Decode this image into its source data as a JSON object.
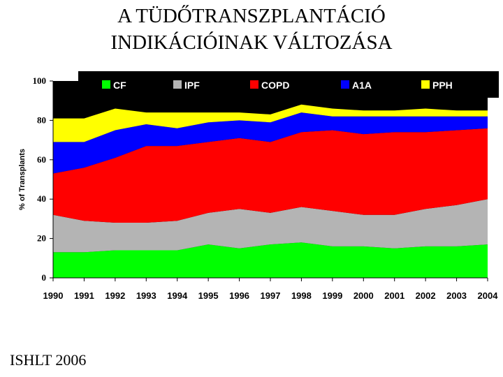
{
  "slide": {
    "title_line1": "A TÜDŐTRANSZPLANTÁCIÓ",
    "title_line2": "INDIKÁCIÓINAK VÁLTOZÁSA",
    "footer": "ISHLT 2006"
  },
  "chart_data": {
    "type": "area",
    "stacked": true,
    "x": [
      1990,
      1991,
      1992,
      1993,
      1994,
      1995,
      1996,
      1997,
      1998,
      1999,
      2000,
      2001,
      2002,
      2003,
      2004
    ],
    "ylabel": "% of Transplants",
    "ylim": [
      0,
      100
    ],
    "yticks": [
      0,
      20,
      40,
      60,
      80,
      100
    ],
    "legend_position": "top",
    "background_color": "#000000",
    "series": [
      {
        "name": "CF",
        "color": "#00ff00",
        "values": [
          13,
          13,
          14,
          14,
          14,
          17,
          15,
          17,
          18,
          16,
          16,
          15,
          16,
          16,
          17
        ]
      },
      {
        "name": "IPF",
        "color": "#b4b4b4",
        "values": [
          19,
          16,
          14,
          14,
          15,
          16,
          20,
          16,
          18,
          18,
          16,
          17,
          19,
          21,
          23
        ]
      },
      {
        "name": "COPD",
        "color": "#ff0000",
        "values": [
          21,
          27,
          33,
          39,
          38,
          36,
          36,
          36,
          38,
          41,
          41,
          42,
          39,
          38,
          36
        ]
      },
      {
        "name": "A1A",
        "color": "#0000ff",
        "values": [
          16,
          13,
          14,
          11,
          9,
          10,
          9,
          10,
          10,
          7,
          9,
          8,
          8,
          7,
          6
        ]
      },
      {
        "name": "PPH",
        "color": "#ffff00",
        "values": [
          12,
          12,
          11,
          6,
          8,
          5,
          4,
          4,
          4,
          4,
          3,
          3,
          4,
          3,
          3
        ]
      }
    ]
  }
}
